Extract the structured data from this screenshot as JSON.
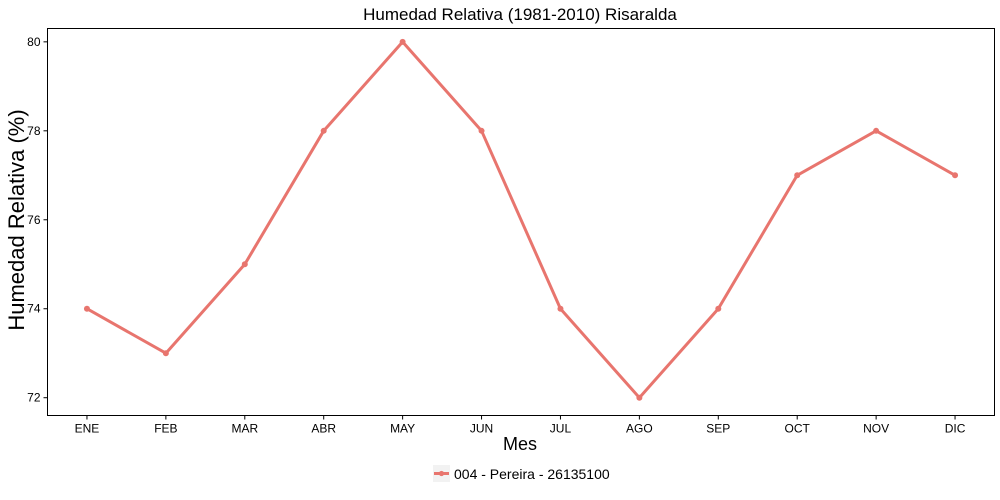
{
  "chart_data": {
    "type": "line",
    "title": "Humedad Relativa (1981-2010)  Risaralda",
    "xlabel": "Mes",
    "ylabel": "Humedad Relativa  (%)",
    "categories": [
      "ENE",
      "FEB",
      "MAR",
      "ABR",
      "MAY",
      "JUN",
      "JUL",
      "AGO",
      "SEP",
      "OCT",
      "NOV",
      "DIC"
    ],
    "yticks": [
      72,
      74,
      76,
      78,
      80
    ],
    "ylim": [
      71.6,
      80.3
    ],
    "grid": false,
    "legend_position": "bottom",
    "series": [
      {
        "name": "004 - Pereira - 26135100",
        "color": "#e8756e",
        "values": [
          74,
          73,
          75,
          78,
          80,
          78,
          74,
          72,
          74,
          77,
          78,
          77
        ]
      }
    ]
  }
}
